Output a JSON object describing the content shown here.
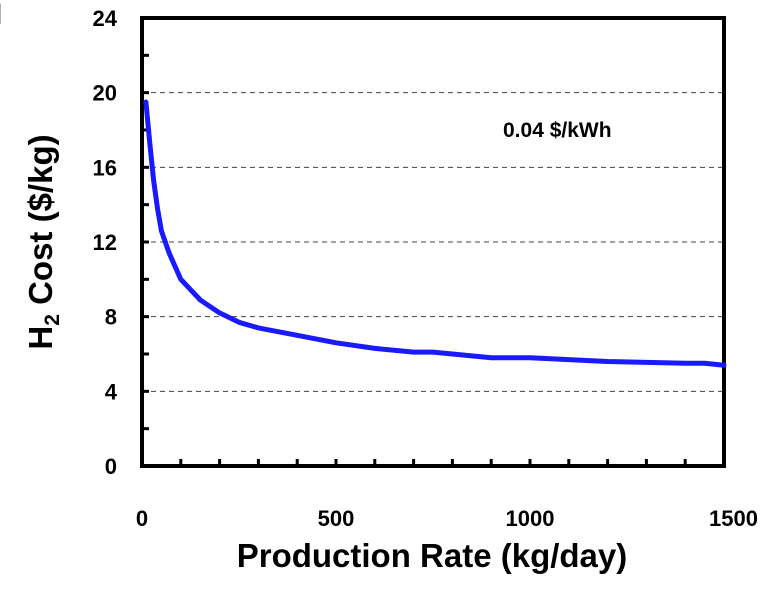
{
  "panel_letter": "I",
  "chart_data": {
    "type": "line",
    "xlabel": "Production Rate (kg/day)",
    "ylabel_main": "H",
    "ylabel_sub": "2",
    "ylabel_rest": " Cost ($/kg)",
    "xlim": [
      0,
      1500
    ],
    "ylim": [
      0,
      24
    ],
    "x_ticks": [
      0,
      500,
      1000,
      1500
    ],
    "y_ticks": [
      0,
      4,
      8,
      12,
      16,
      20,
      24
    ],
    "x_minor_step": 100,
    "y_minor_step": 2,
    "grid": "y-dashed",
    "annotation": "0.04 $/kWh",
    "line_color": "#1a1aff",
    "series": [
      {
        "x": [
          10,
          20,
          30,
          40,
          50,
          70,
          100,
          150,
          200,
          250,
          300,
          400,
          500,
          600,
          700,
          750,
          800,
          900,
          950,
          1000,
          1100,
          1200,
          1300,
          1400,
          1450,
          1500
        ],
        "y": [
          19.5,
          17.3,
          15.3,
          13.8,
          12.6,
          11.4,
          10.0,
          8.9,
          8.2,
          7.7,
          7.4,
          7.0,
          6.6,
          6.3,
          6.1,
          6.1,
          6.0,
          5.8,
          5.8,
          5.8,
          5.7,
          5.6,
          5.55,
          5.5,
          5.5,
          5.4
        ]
      }
    ]
  }
}
